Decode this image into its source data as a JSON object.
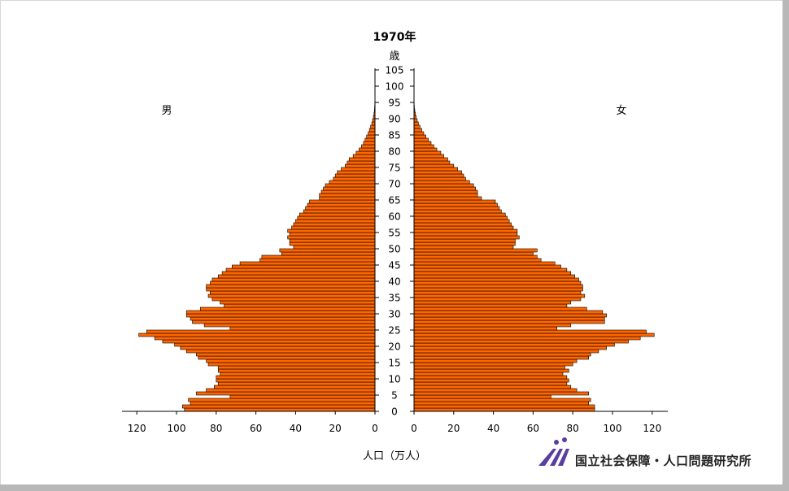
{
  "chart_data": {
    "type": "bar",
    "title": "1970年",
    "age_axis_label": "歳",
    "left_label": "男",
    "right_label": "女",
    "xlabel": "人口（万人）",
    "x_tick_labels_left": [
      "120",
      "100",
      "80",
      "60",
      "40",
      "20",
      "0"
    ],
    "x_tick_labels_right": [
      "0",
      "20",
      "40",
      "60",
      "80",
      "100",
      "120"
    ],
    "age_tick_labels": [
      "0",
      "5",
      "10",
      "15",
      "20",
      "25",
      "30",
      "35",
      "40",
      "45",
      "50",
      "55",
      "60",
      "65",
      "70",
      "75",
      "80",
      "85",
      "90",
      "95",
      "100",
      "105"
    ],
    "xlim": [
      0,
      128
    ],
    "age_range": [
      0,
      105
    ],
    "bar_color": "#ff6600",
    "ages": [
      0,
      1,
      2,
      3,
      4,
      5,
      6,
      7,
      8,
      9,
      10,
      11,
      12,
      13,
      14,
      15,
      16,
      17,
      18,
      19,
      20,
      21,
      22,
      23,
      24,
      25,
      26,
      27,
      28,
      29,
      30,
      31,
      32,
      33,
      34,
      35,
      36,
      37,
      38,
      39,
      40,
      41,
      42,
      43,
      44,
      45,
      46,
      47,
      48,
      49,
      50,
      51,
      52,
      53,
      54,
      55,
      56,
      57,
      58,
      59,
      60,
      61,
      62,
      63,
      64,
      65,
      66,
      67,
      68,
      69,
      70,
      71,
      72,
      73,
      74,
      75,
      76,
      77,
      78,
      79,
      80,
      81,
      82,
      83,
      84,
      85,
      86,
      87,
      88,
      89,
      90,
      91,
      92,
      93,
      94
    ],
    "series": [
      {
        "name": "男",
        "values": [
          96,
          97,
          93,
          94,
          73,
          90,
          85,
          81,
          79,
          80,
          80,
          78,
          79,
          79,
          84,
          85,
          89,
          90,
          95,
          98,
          101,
          107,
          111,
          119,
          115,
          73,
          86,
          92,
          93,
          95,
          95,
          88,
          76,
          78,
          82,
          84,
          83,
          85,
          85,
          83,
          82,
          79,
          77,
          75,
          72,
          68,
          58,
          57,
          47,
          48,
          41,
          43,
          43,
          44,
          43,
          44,
          42,
          41,
          40,
          39,
          38,
          36,
          35,
          34,
          33,
          28,
          28,
          27,
          26,
          25,
          23,
          21,
          20,
          19,
          17,
          15,
          14,
          13,
          11,
          9.5,
          8,
          6.8,
          5.8,
          5,
          4.2,
          3.4,
          2.8,
          2.2,
          1.6,
          1.2,
          0.8,
          0.5,
          0.3,
          0.2,
          0.1
        ]
      },
      {
        "name": "女",
        "values": [
          91,
          91,
          88,
          89,
          69,
          88,
          82,
          79,
          77,
          78,
          77,
          75,
          78,
          76,
          80,
          82,
          88,
          89,
          93,
          97,
          101,
          108,
          114,
          121,
          117,
          72,
          79,
          96,
          96,
          97,
          95,
          87,
          77,
          79,
          84,
          86,
          84,
          85,
          85,
          84,
          83,
          81,
          79,
          77,
          74,
          71,
          64,
          62,
          60,
          62,
          50,
          51,
          51,
          53,
          52,
          52,
          50,
          49,
          48,
          47,
          46,
          44,
          43,
          42,
          41,
          34,
          32,
          32,
          31,
          30,
          28,
          26,
          25,
          24,
          22,
          20,
          18,
          17,
          15,
          13.5,
          11.5,
          10,
          8.6,
          7.2,
          6,
          4.9,
          3.9,
          3,
          2.2,
          1.6,
          1.1,
          0.7,
          0.4,
          0.2,
          0.1
        ]
      }
    ]
  },
  "footer": {
    "org_name": "国立社会保障・人口問題研究所"
  }
}
